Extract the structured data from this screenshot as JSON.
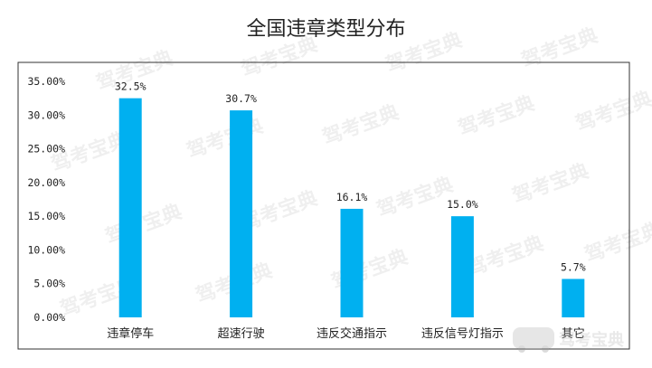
{
  "chart_data": {
    "type": "bar",
    "title": "全国违章类型分布",
    "categories": [
      "违章停车",
      "超速行驶",
      "违反交通指示",
      "违反信号灯指示",
      "其它"
    ],
    "values": [
      32.5,
      30.7,
      16.1,
      15.0,
      5.7
    ],
    "value_labels": [
      "32.5%",
      "30.7%",
      "16.1%",
      "15.0%",
      "5.7%"
    ],
    "y_ticks": [
      "0.00%",
      "5.00%",
      "10.00%",
      "15.00%",
      "20.00%",
      "25.00%",
      "30.00%",
      "35.00%"
    ],
    "ylim": [
      0,
      35
    ],
    "grid": false,
    "legend": "none",
    "bar_color": "#00b0f0"
  },
  "watermark": {
    "text": "驾考宝典",
    "logo_text": "驾考宝典"
  }
}
